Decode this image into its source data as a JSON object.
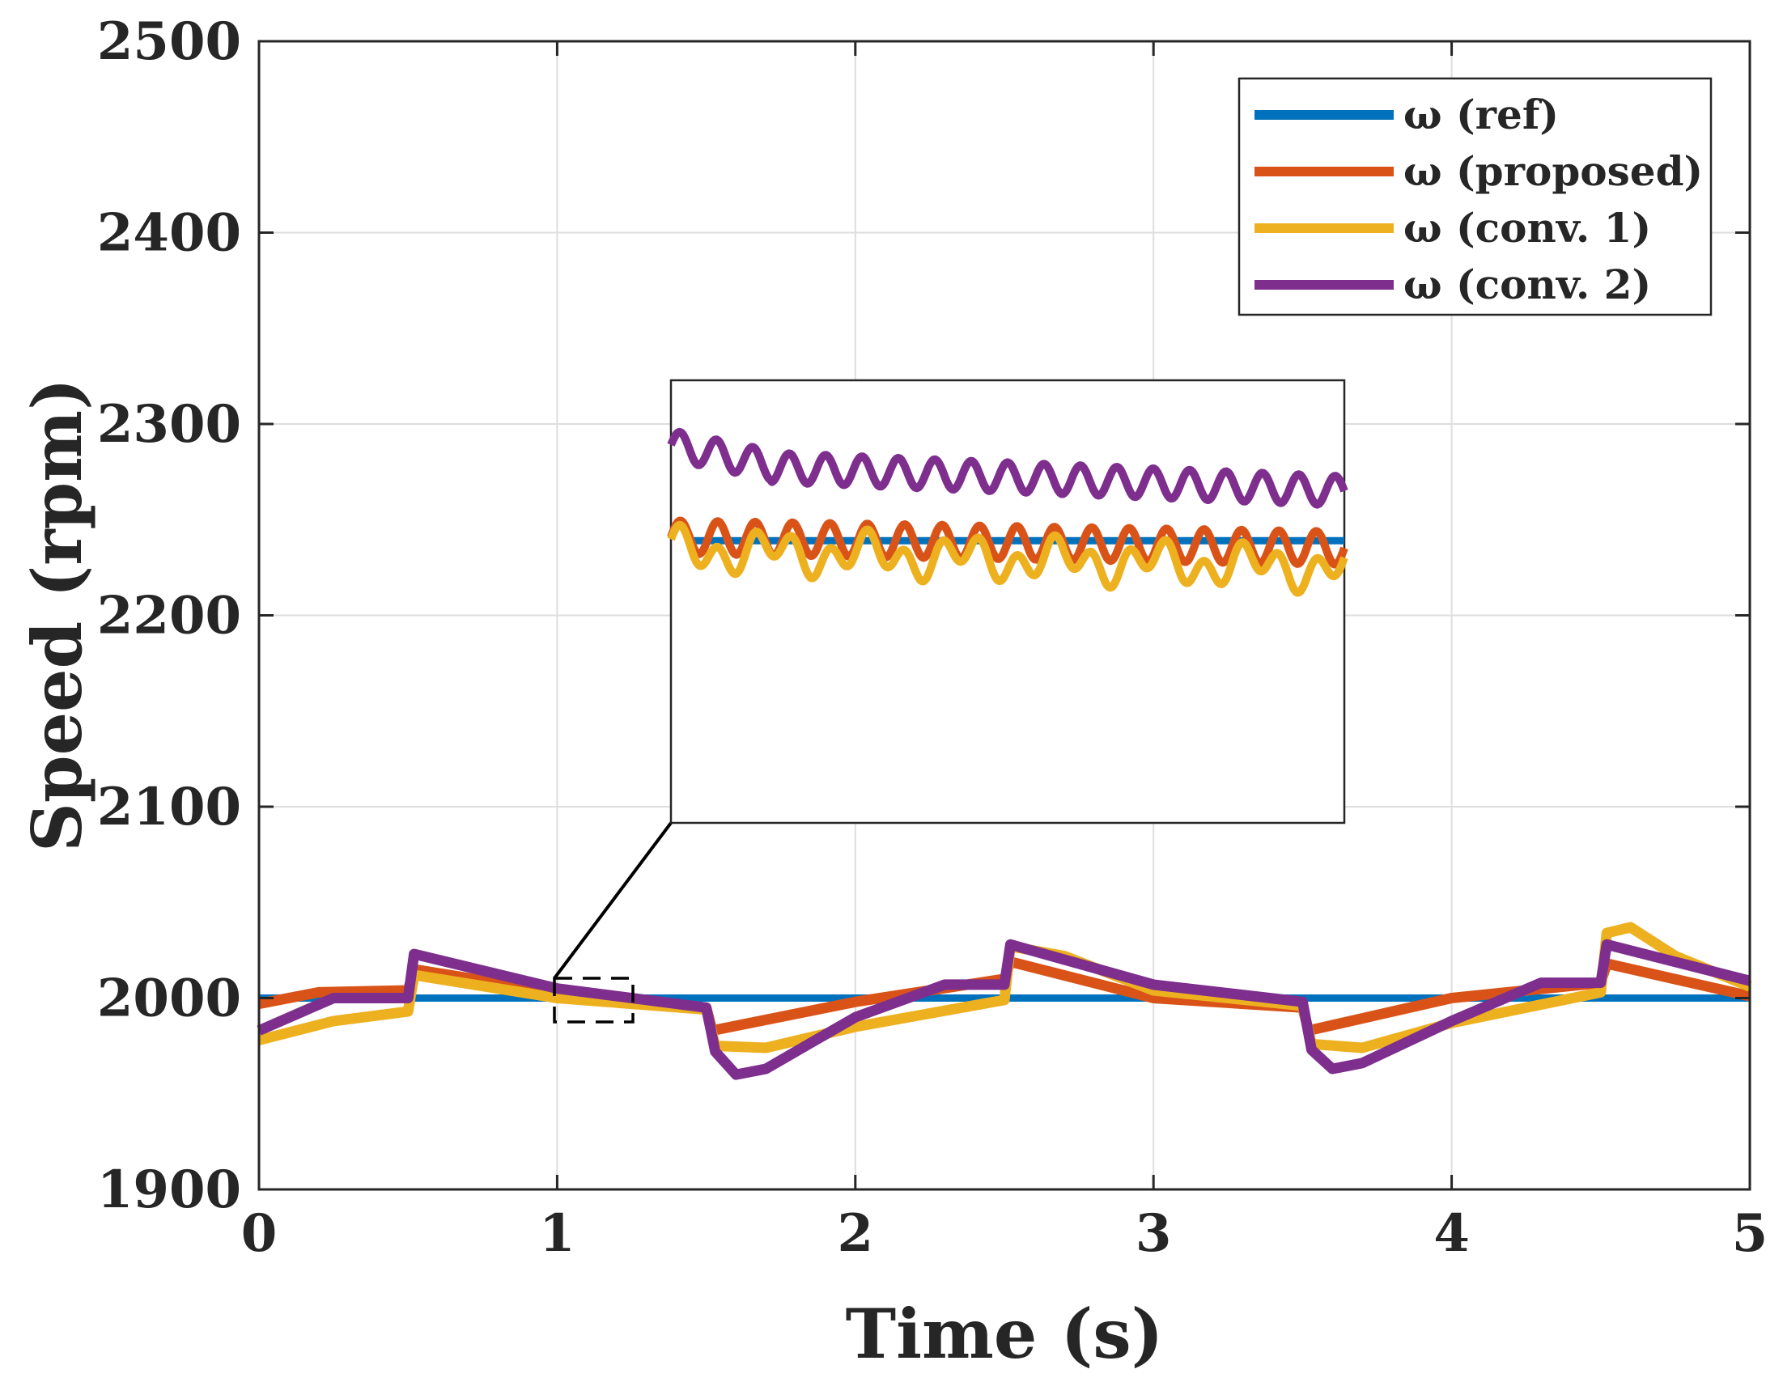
{
  "chart_data": {
    "type": "line",
    "title": "",
    "xlabel": "Time (s)",
    "ylabel": "Speed (rpm)",
    "xlim": [
      0,
      5
    ],
    "ylim": [
      1900,
      2500
    ],
    "xticks": [
      "0",
      "1",
      "2",
      "3",
      "4",
      "5"
    ],
    "yticks": [
      "1900",
      "2000",
      "2100",
      "2200",
      "2300",
      "2400",
      "2500"
    ],
    "grid": true,
    "legend_position": "top-right",
    "series": [
      {
        "name": "ω (ref)",
        "color": "#0072BD",
        "points": [
          [
            0,
            2000
          ],
          [
            5,
            2000
          ]
        ]
      },
      {
        "name": "ω (proposed)",
        "color": "#D95319",
        "points": [
          [
            0,
            1997
          ],
          [
            0.2,
            2003
          ],
          [
            0.5,
            2004
          ],
          [
            0.5,
            2004
          ],
          [
            0.52,
            2015
          ],
          [
            1.0,
            2003
          ],
          [
            1.5,
            1995
          ],
          [
            1.52,
            1983
          ],
          [
            2.0,
            1998
          ],
          [
            2.5,
            2010
          ],
          [
            2.52,
            2019
          ],
          [
            3.0,
            2000
          ],
          [
            3.5,
            1995
          ],
          [
            3.52,
            1983
          ],
          [
            4.0,
            2000
          ],
          [
            4.5,
            2008
          ],
          [
            4.52,
            2018
          ],
          [
            5.0,
            2001
          ]
        ]
      },
      {
        "name": "ω (conv. 1)",
        "color": "#EDB120",
        "points": [
          [
            0,
            1978
          ],
          [
            0.25,
            1988
          ],
          [
            0.5,
            1993
          ],
          [
            0.52,
            2012
          ],
          [
            1.0,
            2000
          ],
          [
            1.5,
            1994
          ],
          [
            1.53,
            1975
          ],
          [
            1.7,
            1974
          ],
          [
            2.0,
            1985
          ],
          [
            2.5,
            1999
          ],
          [
            2.52,
            2027
          ],
          [
            2.7,
            2022
          ],
          [
            3.0,
            2004
          ],
          [
            3.5,
            1996
          ],
          [
            3.53,
            1976
          ],
          [
            3.7,
            1974
          ],
          [
            4.0,
            1987
          ],
          [
            4.5,
            2003
          ],
          [
            4.52,
            2034
          ],
          [
            4.6,
            2037
          ],
          [
            4.75,
            2022
          ],
          [
            5.0,
            2006
          ]
        ]
      },
      {
        "name": "ω (conv. 2)",
        "color": "#7E2F8E",
        "points": [
          [
            0,
            1983
          ],
          [
            0.25,
            2000
          ],
          [
            0.5,
            2000
          ],
          [
            0.52,
            2023
          ],
          [
            1.0,
            2005
          ],
          [
            1.5,
            1995
          ],
          [
            1.53,
            1972
          ],
          [
            1.6,
            1960
          ],
          [
            1.7,
            1963
          ],
          [
            2.0,
            1990
          ],
          [
            2.3,
            2007
          ],
          [
            2.5,
            2007
          ],
          [
            2.52,
            2028
          ],
          [
            3.0,
            2007
          ],
          [
            3.5,
            1998
          ],
          [
            3.53,
            1973
          ],
          [
            3.6,
            1963
          ],
          [
            3.7,
            1966
          ],
          [
            4.0,
            1988
          ],
          [
            4.3,
            2008
          ],
          [
            4.5,
            2008
          ],
          [
            4.52,
            2028
          ],
          [
            5.0,
            2009
          ]
        ]
      }
    ],
    "inset": {
      "note": "zoomed view of region t = 1.0–1.26 s, speed ≈ 1988–2012 rpm",
      "source_region": {
        "x": [
          1.0,
          1.26
        ],
        "y": [
          1988,
          2012
        ]
      }
    }
  }
}
